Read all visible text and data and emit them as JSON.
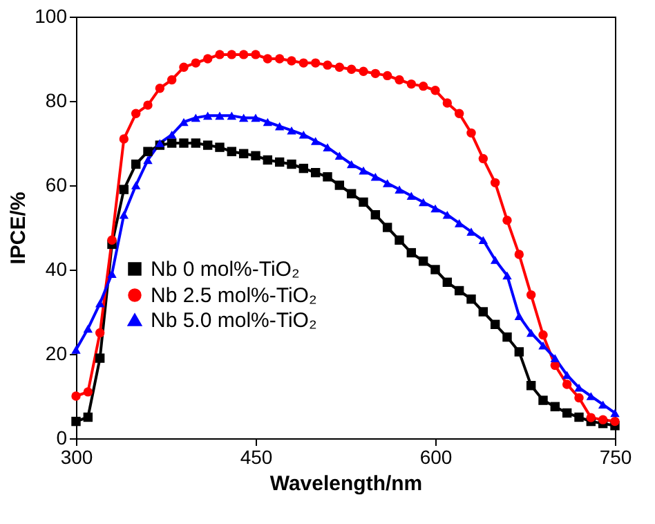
{
  "chart_data": {
    "type": "line",
    "xlabel": "Wavelength/nm",
    "ylabel": "IPCE/%",
    "x": [
      300,
      310,
      320,
      330,
      340,
      350,
      360,
      370,
      380,
      390,
      400,
      410,
      420,
      430,
      440,
      450,
      460,
      470,
      480,
      490,
      500,
      510,
      520,
      530,
      540,
      550,
      560,
      570,
      580,
      590,
      600,
      610,
      620,
      630,
      640,
      650,
      660,
      670,
      680,
      690,
      700,
      710,
      720,
      730,
      740,
      750
    ],
    "series": [
      {
        "name": "Nb 0 mol%-TiO₂",
        "color": "#000000",
        "marker": "square",
        "values": [
          4,
          5,
          19,
          46,
          59,
          65,
          68,
          69.5,
          70,
          70,
          70,
          69.5,
          69,
          68,
          67.5,
          67,
          66,
          65.5,
          65,
          64,
          63,
          62,
          60,
          58,
          56,
          53,
          50,
          47,
          44,
          42,
          40,
          37,
          35,
          33,
          30,
          27,
          24,
          20.5,
          12.5,
          9,
          7.5,
          6,
          5,
          4,
          3.5,
          3
        ]
      },
      {
        "name": "Nb 2.5 mol%-TiO₂",
        "color": "#ff0000",
        "marker": "circle",
        "values": [
          10,
          11,
          25,
          47,
          71,
          77,
          79,
          83,
          85,
          88,
          89,
          90,
          91,
          91,
          91,
          91,
          90,
          90,
          89.5,
          89,
          89,
          88.5,
          88,
          87.5,
          87,
          86.5,
          86,
          85,
          84,
          83.5,
          82.5,
          79.5,
          77,
          72.4,
          66.3,
          60.6,
          51.7,
          43.6,
          34,
          24.5,
          17.3,
          12.8,
          9.6,
          4.9,
          4.4,
          4
        ]
      },
      {
        "name": "Nb 5.0 mol%-TiO₂",
        "color": "#0000ff",
        "marker": "triangle",
        "values": [
          21,
          26,
          32,
          39,
          53,
          60,
          66,
          70,
          72,
          75,
          76,
          76.5,
          76.5,
          76.5,
          76,
          76,
          75,
          74,
          73,
          72,
          70.5,
          69,
          67,
          65,
          63.5,
          62,
          60.5,
          59,
          57.5,
          56,
          54.5,
          53,
          51,
          49,
          47,
          42.3,
          38.6,
          29,
          25,
          22,
          19,
          15,
          12,
          10,
          8,
          6
        ]
      }
    ],
    "xlim": [
      300,
      750
    ],
    "xticks": [
      300,
      450,
      600,
      750
    ],
    "ylim": [
      0,
      100
    ],
    "yticks": [
      0,
      20,
      40,
      60,
      80,
      100
    ],
    "grid": false,
    "legend": "left",
    "line_style": "solid"
  }
}
